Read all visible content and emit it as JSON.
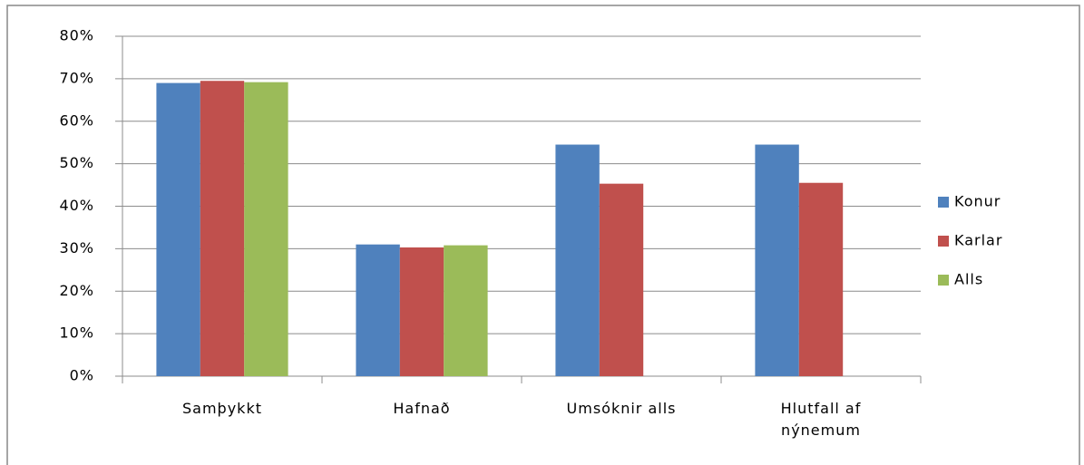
{
  "chart_data": {
    "type": "bar",
    "categories": [
      "Samþykkt",
      "Hafnað",
      "Umsóknir alls",
      "Hlutfall af nýnemum"
    ],
    "series": [
      {
        "name": "Konur",
        "color": "#4f81bd",
        "values": [
          69,
          31,
          54.5,
          54.5
        ]
      },
      {
        "name": "Karlar",
        "color": "#c0504d",
        "values": [
          69.5,
          30.3,
          45.3,
          45.5
        ]
      },
      {
        "name": "Alls",
        "color": "#9bbb59",
        "values": [
          69.2,
          30.8,
          null,
          null
        ]
      }
    ],
    "ylim": [
      0,
      80
    ],
    "yticks": [
      {
        "value": 0,
        "label": "0%"
      },
      {
        "value": 10,
        "label": "10%"
      },
      {
        "value": 20,
        "label": "20%"
      },
      {
        "value": 30,
        "label": "30%"
      },
      {
        "value": 40,
        "label": "40%"
      },
      {
        "value": 50,
        "label": "50%"
      },
      {
        "value": 60,
        "label": "60%"
      },
      {
        "value": 70,
        "label": "70%"
      },
      {
        "value": 80,
        "label": "80%"
      }
    ],
    "grid": true,
    "legend": "right"
  }
}
